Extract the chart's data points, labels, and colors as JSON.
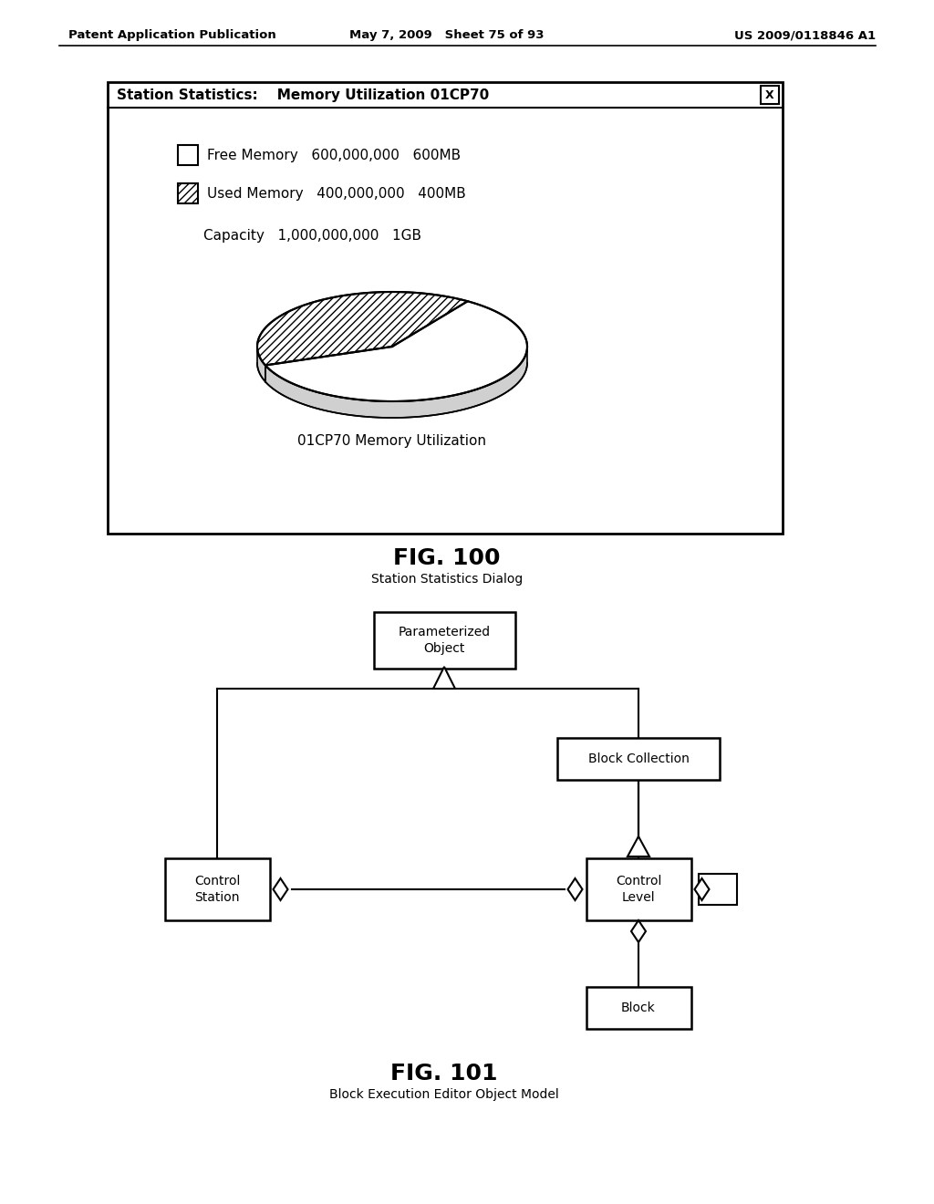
{
  "header_left": "Patent Application Publication",
  "header_mid": "May 7, 2009   Sheet 75 of 93",
  "header_right": "US 2009/0118846 A1",
  "fig100_title": "FIG. 100",
  "fig100_subtitle": "Station Statistics Dialog",
  "fig101_title": "FIG. 101",
  "fig101_subtitle": "Block Execution Editor Object Model",
  "dialog_title": "Station Statistics:    Memory Utilization 01CP70",
  "legend_free": "Free Memory   600,000,000   600MB",
  "legend_used": "Used Memory   400,000,000   400MB",
  "capacity_text": "Capacity   1,000,000,000   1GB",
  "pie_label": "01CP70 Memory Utilization",
  "free_pct": 60,
  "used_pct": 40,
  "box_parameterized": "Parameterized\nObject",
  "box_block_collection": "Block Collection",
  "box_control_station": "Control\nStation",
  "box_control_level": "Control\nLevel",
  "box_block": "Block",
  "bg_color": "#ffffff",
  "text_color": "#000000"
}
